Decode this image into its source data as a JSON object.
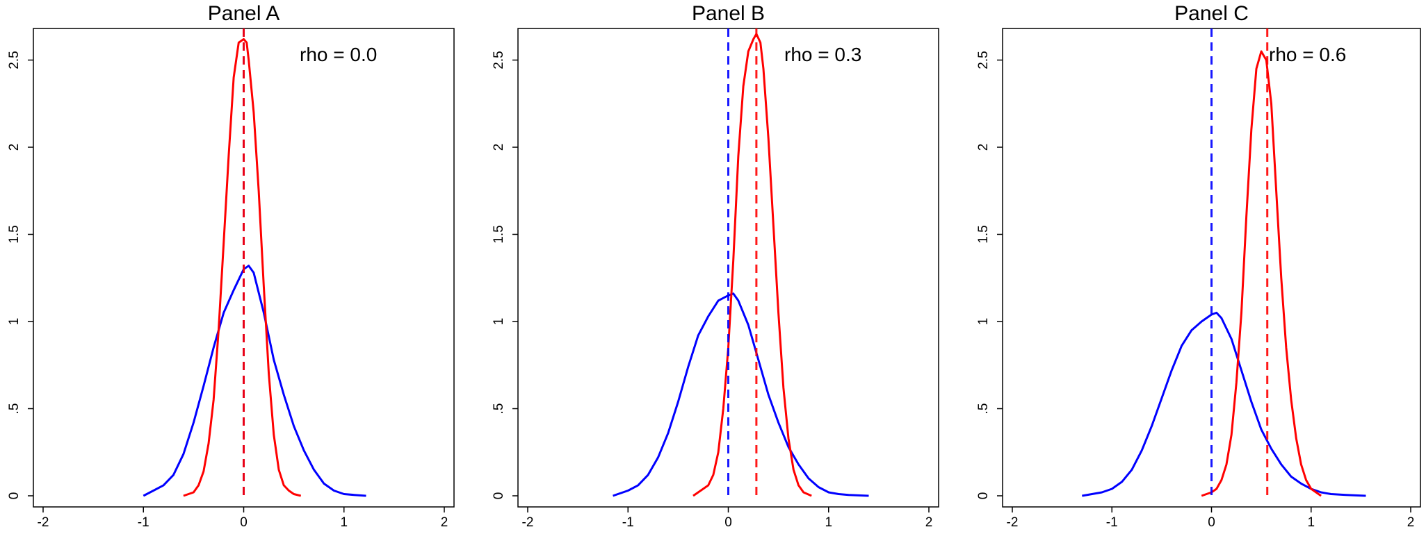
{
  "chart_data": [
    {
      "type": "line",
      "title": "Panel A",
      "annotation": "rho = 0.0",
      "xlim": [
        -2,
        2
      ],
      "ylim": [
        0,
        2.7
      ],
      "xticks": [
        -2,
        -1,
        0,
        1,
        2
      ],
      "xtick_labels": [
        "-2",
        "-1",
        "0",
        "1",
        "2"
      ],
      "yticks": [
        0,
        0.5,
        1,
        1.5,
        2,
        2.5
      ],
      "ytick_labels": [
        "0",
        ".5",
        "1",
        "1.5",
        "2",
        "2.5"
      ],
      "series": [
        {
          "color": "#0000ff",
          "x": [
            -1.0,
            -0.9,
            -0.8,
            -0.7,
            -0.6,
            -0.5,
            -0.4,
            -0.3,
            -0.2,
            -0.1,
            0.0,
            0.05,
            0.1,
            0.2,
            0.3,
            0.4,
            0.5,
            0.6,
            0.7,
            0.8,
            0.9,
            1.0,
            1.1,
            1.22
          ],
          "y": [
            0.0,
            0.03,
            0.06,
            0.12,
            0.24,
            0.42,
            0.63,
            0.85,
            1.05,
            1.18,
            1.3,
            1.32,
            1.28,
            1.05,
            0.78,
            0.58,
            0.4,
            0.26,
            0.15,
            0.07,
            0.03,
            0.01,
            0.005,
            0.0
          ]
        },
        {
          "color": "#ff0000",
          "x": [
            -0.6,
            -0.5,
            -0.45,
            -0.4,
            -0.35,
            -0.3,
            -0.25,
            -0.2,
            -0.15,
            -0.1,
            -0.05,
            0.0,
            0.03,
            0.05,
            0.1,
            0.15,
            0.2,
            0.25,
            0.3,
            0.35,
            0.4,
            0.45,
            0.5,
            0.57
          ],
          "y": [
            0.0,
            0.02,
            0.06,
            0.14,
            0.3,
            0.55,
            0.95,
            1.45,
            1.95,
            2.4,
            2.6,
            2.62,
            2.6,
            2.5,
            2.2,
            1.75,
            1.2,
            0.7,
            0.35,
            0.15,
            0.06,
            0.03,
            0.01,
            0.0
          ]
        }
      ],
      "vlines": [
        {
          "x": 0.0,
          "color": "#0000ff",
          "style": "dashed"
        },
        {
          "x": 0.0,
          "color": "#ff0000",
          "style": "dashed"
        }
      ],
      "grid": false
    },
    {
      "type": "line",
      "title": "Panel B",
      "annotation": "rho = 0.3",
      "xlim": [
        -2,
        2
      ],
      "ylim": [
        0,
        2.7
      ],
      "xticks": [
        -2,
        -1,
        0,
        1,
        2
      ],
      "xtick_labels": [
        "-2",
        "-1",
        "0",
        "1",
        "2"
      ],
      "yticks": [
        0,
        0.5,
        1,
        1.5,
        2,
        2.5
      ],
      "ytick_labels": [
        "0",
        ".5",
        "1",
        "1.5",
        "2",
        "2.5"
      ],
      "series": [
        {
          "color": "#0000ff",
          "x": [
            -1.15,
            -1.0,
            -0.9,
            -0.8,
            -0.7,
            -0.6,
            -0.5,
            -0.4,
            -0.3,
            -0.2,
            -0.1,
            0.0,
            0.05,
            0.1,
            0.2,
            0.3,
            0.4,
            0.5,
            0.6,
            0.7,
            0.8,
            0.9,
            1.0,
            1.1,
            1.2,
            1.4
          ],
          "y": [
            0.0,
            0.03,
            0.06,
            0.12,
            0.22,
            0.36,
            0.54,
            0.74,
            0.92,
            1.03,
            1.12,
            1.15,
            1.16,
            1.12,
            0.98,
            0.78,
            0.58,
            0.42,
            0.28,
            0.18,
            0.1,
            0.05,
            0.02,
            0.01,
            0.005,
            0.0
          ]
        },
        {
          "color": "#ff0000",
          "x": [
            -0.35,
            -0.25,
            -0.2,
            -0.15,
            -0.1,
            -0.05,
            0.0,
            0.05,
            0.1,
            0.15,
            0.2,
            0.25,
            0.28,
            0.32,
            0.35,
            0.4,
            0.45,
            0.5,
            0.55,
            0.6,
            0.65,
            0.7,
            0.75,
            0.83
          ],
          "y": [
            0.0,
            0.04,
            0.06,
            0.12,
            0.25,
            0.5,
            0.85,
            1.35,
            1.95,
            2.35,
            2.55,
            2.62,
            2.65,
            2.6,
            2.45,
            2.05,
            1.55,
            1.05,
            0.62,
            0.33,
            0.15,
            0.06,
            0.02,
            0.0
          ]
        }
      ],
      "vlines": [
        {
          "x": 0.0,
          "color": "#0000ff",
          "style": "dashed"
        },
        {
          "x": 0.28,
          "color": "#ff0000",
          "style": "dashed"
        }
      ],
      "grid": false
    },
    {
      "type": "line",
      "title": "Panel C",
      "annotation": "rho = 0.6",
      "xlim": [
        -2,
        2
      ],
      "ylim": [
        0,
        2.7
      ],
      "xticks": [
        -2,
        -1,
        0,
        1,
        2
      ],
      "xtick_labels": [
        "-2",
        "-1",
        "0",
        "1",
        "2"
      ],
      "yticks": [
        0,
        0.5,
        1,
        1.5,
        2,
        2.5
      ],
      "ytick_labels": [
        "0",
        ".5",
        "1",
        "1.5",
        "2",
        "2.5"
      ],
      "series": [
        {
          "color": "#0000ff",
          "x": [
            -1.3,
            -1.1,
            -1.0,
            -0.9,
            -0.8,
            -0.7,
            -0.6,
            -0.5,
            -0.4,
            -0.3,
            -0.2,
            -0.1,
            0.0,
            0.05,
            0.1,
            0.2,
            0.3,
            0.4,
            0.5,
            0.6,
            0.7,
            0.8,
            0.9,
            1.0,
            1.1,
            1.2,
            1.35,
            1.55
          ],
          "y": [
            0.0,
            0.02,
            0.04,
            0.08,
            0.15,
            0.26,
            0.4,
            0.56,
            0.72,
            0.86,
            0.95,
            1.0,
            1.04,
            1.05,
            1.02,
            0.9,
            0.72,
            0.54,
            0.38,
            0.27,
            0.18,
            0.11,
            0.07,
            0.04,
            0.02,
            0.01,
            0.005,
            0.0
          ]
        },
        {
          "color": "#ff0000",
          "x": [
            -0.1,
            0.0,
            0.05,
            0.1,
            0.15,
            0.2,
            0.25,
            0.3,
            0.35,
            0.4,
            0.45,
            0.5,
            0.55,
            0.6,
            0.65,
            0.7,
            0.75,
            0.8,
            0.85,
            0.9,
            0.95,
            1.0,
            1.05,
            1.1
          ],
          "y": [
            0.0,
            0.02,
            0.04,
            0.09,
            0.18,
            0.35,
            0.65,
            1.05,
            1.6,
            2.1,
            2.45,
            2.55,
            2.5,
            2.25,
            1.75,
            1.25,
            0.85,
            0.55,
            0.33,
            0.18,
            0.09,
            0.04,
            0.02,
            0.0
          ]
        }
      ],
      "vlines": [
        {
          "x": 0.0,
          "color": "#0000ff",
          "style": "dashed"
        },
        {
          "x": 0.56,
          "color": "#ff0000",
          "style": "dashed"
        }
      ],
      "grid": false
    }
  ]
}
